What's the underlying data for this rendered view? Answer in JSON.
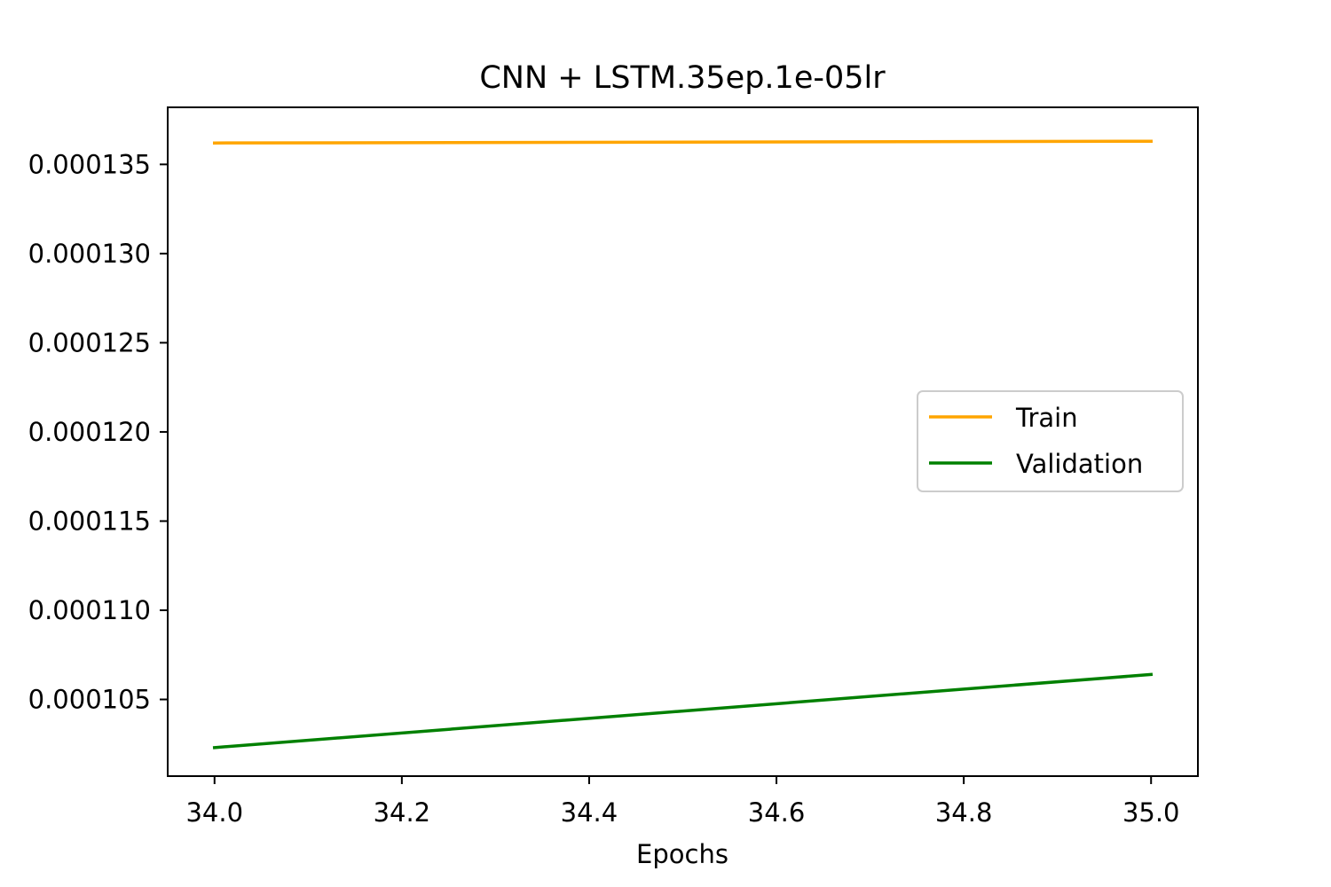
{
  "chart_data": {
    "type": "line",
    "title": "CNN + LSTM.35ep.1e-05lr",
    "xlabel": "Epochs",
    "ylabel": "",
    "x": [
      34.0,
      35.0
    ],
    "series": [
      {
        "name": "Train",
        "color": "#ffa500",
        "values": [
          0.0001362,
          0.0001363
        ]
      },
      {
        "name": "Validation",
        "color": "#008000",
        "values": [
          0.0001023,
          0.0001064
        ]
      }
    ],
    "xlim": [
      33.95,
      35.05
    ],
    "ylim": [
      0.0001007,
      0.0001382
    ],
    "xticks": [
      34.0,
      34.2,
      34.4,
      34.6,
      34.8,
      35.0
    ],
    "xtick_labels": [
      "34.0",
      "34.2",
      "34.4",
      "34.6",
      "34.8",
      "35.0"
    ],
    "yticks": [
      0.000105,
      0.00011,
      0.000115,
      0.00012,
      0.000125,
      0.00013,
      0.000135
    ],
    "ytick_labels": [
      "0.000105",
      "0.000110",
      "0.000115",
      "0.000120",
      "0.000125",
      "0.000130",
      "0.000135"
    ],
    "grid": false,
    "legend_position": "center-right"
  }
}
